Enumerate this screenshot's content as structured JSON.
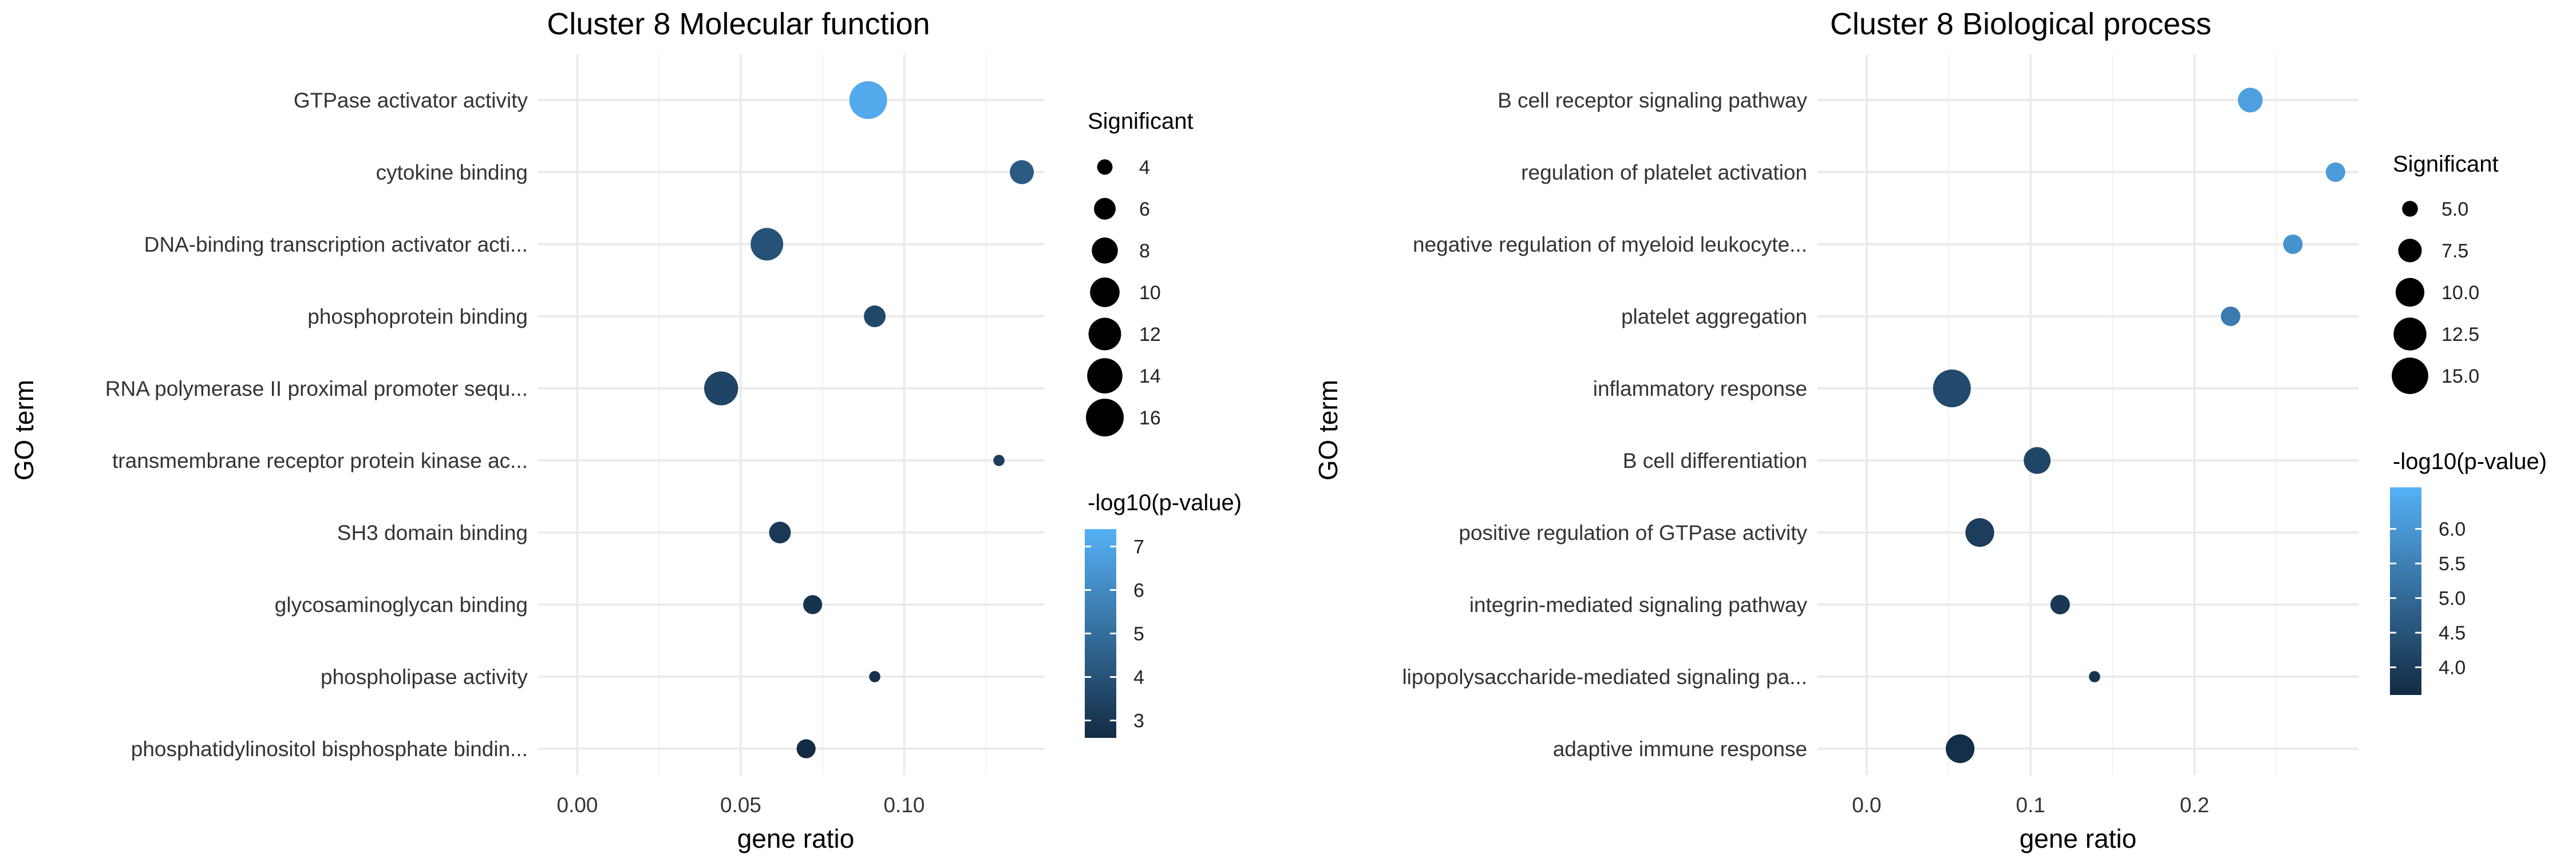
{
  "chart_data": [
    {
      "type": "scatter",
      "title": "Cluster 8 Molecular function",
      "xlabel": "gene ratio",
      "ylabel": "GO term",
      "xlim": [
        -0.012,
        0.143
      ],
      "xticks": [
        0.0,
        0.05,
        0.1
      ],
      "xtick_labels": [
        "0.00",
        "0.05",
        "0.10"
      ],
      "grid": true,
      "categories": [
        "GTPase activator activity",
        "cytokine binding",
        "DNA-binding transcription activator acti...",
        "phosphoprotein binding",
        "RNA polymerase II proximal promoter sequ...",
        "transmembrane receptor protein kinase ac...",
        "SH3 domain binding",
        "glycosaminoglycan binding",
        "phospholipase activity",
        "phosphatidylinositol bisphosphate bindin..."
      ],
      "gene_ratio": [
        0.089,
        0.136,
        0.058,
        0.091,
        0.044,
        0.129,
        0.062,
        0.072,
        0.091,
        0.07
      ],
      "significant": [
        16,
        7,
        12,
        6,
        13,
        3,
        6,
        5,
        3,
        5
      ],
      "neg_log10_p": [
        7.1,
        4.3,
        4.0,
        3.6,
        3.5,
        3.3,
        3.1,
        2.9,
        2.8,
        2.6
      ],
      "size_legend": {
        "title": "Significant",
        "values": [
          4,
          6,
          8,
          10,
          12,
          14,
          16
        ],
        "labels": [
          "4",
          "6",
          "8",
          "10",
          "12",
          "14",
          "16"
        ],
        "range": [
          3,
          16
        ]
      },
      "color_legend": {
        "title": "-log10(p-value)",
        "ticks": [
          3,
          4,
          5,
          6,
          7
        ],
        "labels": [
          "3",
          "4",
          "5",
          "6",
          "7"
        ],
        "range": [
          2.6,
          7.4
        ]
      }
    },
    {
      "type": "scatter",
      "title": "Cluster 8 Biological process",
      "xlabel": "gene ratio",
      "ylabel": "GO term",
      "xlim": [
        -0.03,
        0.3
      ],
      "xticks": [
        0.0,
        0.1,
        0.2
      ],
      "xtick_labels": [
        "0.0",
        "0.1",
        "0.2"
      ],
      "grid": true,
      "categories": [
        "B cell receptor signaling pathway",
        "regulation of platelet activation",
        "negative regulation of myeloid leukocyte...",
        "platelet aggregation",
        "inflammatory response",
        "B cell differentiation",
        "positive regulation of GTPase activity",
        "integrin-mediated signaling pathway",
        "lipopolysaccharide-mediated signaling pa...",
        "adaptive immune response"
      ],
      "gene_ratio": [
        0.234,
        0.286,
        0.26,
        0.222,
        0.052,
        0.104,
        0.069,
        0.118,
        0.139,
        0.057
      ],
      "significant": [
        8,
        6,
        6,
        6,
        16,
        9,
        10,
        6,
        4,
        10
      ],
      "neg_log10_p": [
        6.2,
        6.1,
        5.9,
        5.4,
        4.3,
        4.2,
        4.0,
        3.9,
        3.8,
        3.7
      ],
      "size_legend": {
        "title": "Significant",
        "values": [
          5,
          7.5,
          10,
          12.5,
          15
        ],
        "labels": [
          "5.0",
          "7.5",
          "10.0",
          "12.5",
          "15.0"
        ],
        "range": [
          4,
          16
        ]
      },
      "color_legend": {
        "title": "-log10(p-value)",
        "ticks": [
          4,
          4.5,
          5,
          5.5,
          6
        ],
        "labels": [
          "4.0",
          "4.5",
          "5.0",
          "5.5",
          "6.0"
        ],
        "range": [
          3.6,
          6.6
        ]
      }
    }
  ],
  "colors": {
    "low": "#132B43",
    "high": "#56B1F7",
    "grid_major": "#EBEBEB",
    "grid_minor": "#F5F5F5",
    "point_black": "#000000"
  }
}
